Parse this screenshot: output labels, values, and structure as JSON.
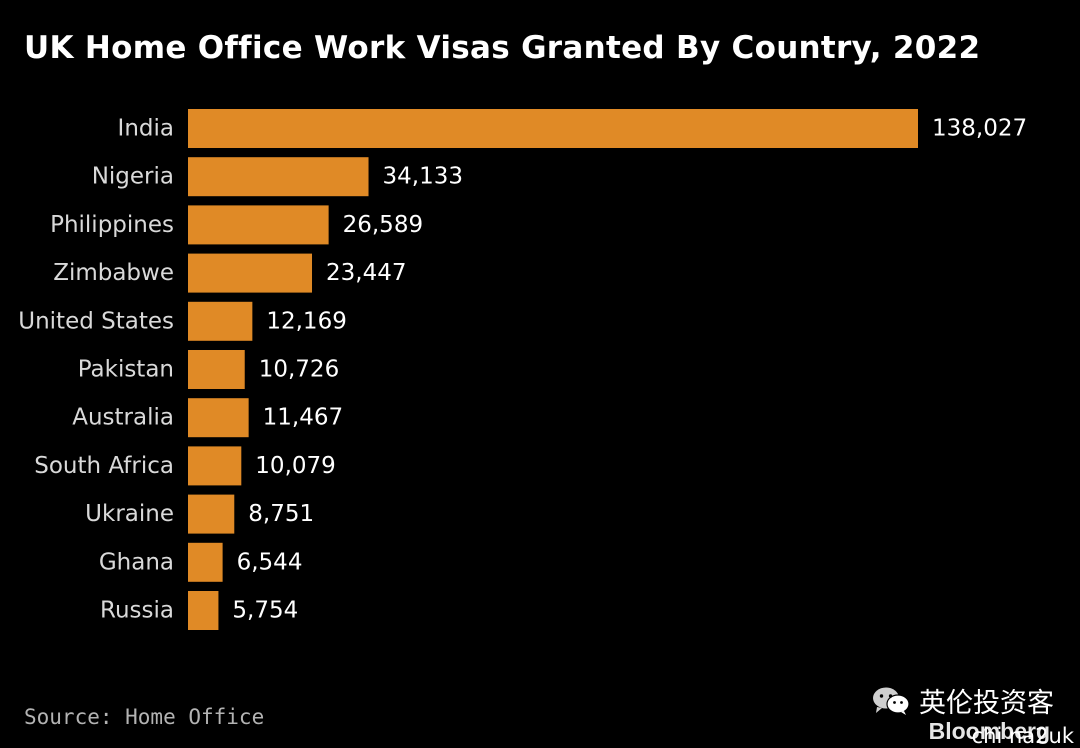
{
  "title": "UK Home Office Work Visas Granted By Country, 2022",
  "source": "Source: Home Office",
  "watermark": {
    "account_name": "英伦投资客",
    "brand": "Bloomberg",
    "account_id": "chi na2uk",
    "icon": "wechat-icon"
  },
  "colors": {
    "bar": "#e08a26",
    "background": "#000000"
  },
  "chart_data": {
    "type": "bar",
    "orientation": "horizontal",
    "title": "UK Home Office Work Visas Granted By Country, 2022",
    "xlabel": "",
    "ylabel": "",
    "categories": [
      "India",
      "Nigeria",
      "Philippines",
      "Zimbabwe",
      "United States",
      "Pakistan",
      "Australia",
      "South Africa",
      "Ukraine",
      "Ghana",
      "Russia"
    ],
    "values": [
      138027,
      34133,
      26589,
      23447,
      12169,
      10726,
      11467,
      10079,
      8751,
      6544,
      5754
    ],
    "value_labels": [
      "138,027",
      "34,133",
      "26,589",
      "23,447",
      "12,169",
      "10,726",
      "11,467",
      "10,079",
      "8,751",
      "6,544",
      "5,754"
    ],
    "xlim": [
      0,
      138027
    ],
    "grid": false,
    "legend": "none"
  }
}
